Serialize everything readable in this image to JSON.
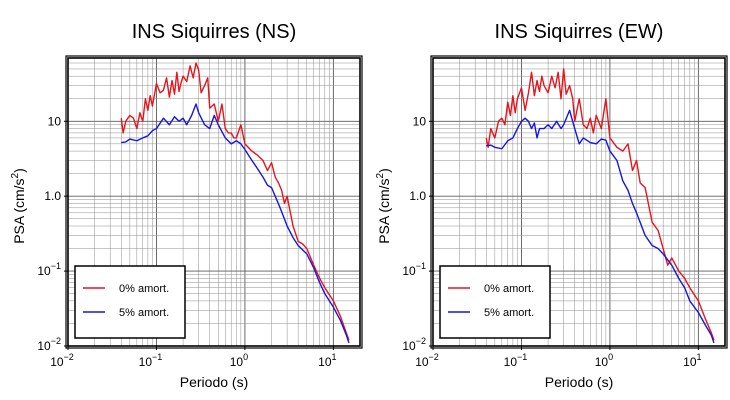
{
  "chart_data": [
    {
      "type": "line",
      "title": "INS Siquirres (NS)",
      "xlabel": "Periodo (s)",
      "ylabel": {
        "base": "PSA (cm/s",
        "sup": "2",
        "end": ")"
      },
      "xscale": "log",
      "yscale": "log",
      "xlim": [
        0.01,
        20
      ],
      "ylim": [
        0.01,
        70
      ],
      "xticks": [
        {
          "value": 0.01,
          "base": "10",
          "exp": "−2"
        },
        {
          "value": 0.1,
          "base": "10",
          "exp": "−1"
        },
        {
          "value": 1,
          "base": "10",
          "exp": "0"
        },
        {
          "value": 10,
          "base": "10",
          "exp": "1"
        }
      ],
      "yticks": [
        {
          "value": 0.01,
          "base": "10",
          "exp": "−2"
        },
        {
          "value": 0.1,
          "base": "10",
          "exp": "−1"
        },
        {
          "value": 1,
          "label": "1.0"
        },
        {
          "value": 10,
          "label": "10"
        }
      ],
      "grid": true,
      "legend": "bottom-left",
      "series": [
        {
          "name": "0% amort.",
          "color": "#e8141c",
          "x": [
            0.04,
            0.042,
            0.045,
            0.05,
            0.055,
            0.06,
            0.065,
            0.07,
            0.075,
            0.08,
            0.085,
            0.09,
            0.1,
            0.11,
            0.12,
            0.13,
            0.14,
            0.15,
            0.16,
            0.17,
            0.18,
            0.19,
            0.2,
            0.22,
            0.24,
            0.26,
            0.28,
            0.3,
            0.32,
            0.35,
            0.38,
            0.4,
            0.45,
            0.5,
            0.55,
            0.6,
            0.65,
            0.7,
            0.75,
            0.8,
            0.9,
            1.0,
            1.2,
            1.4,
            1.6,
            1.8,
            2.0,
            2.2,
            2.4,
            2.6,
            2.8,
            3.0,
            3.5,
            4.0,
            4.5,
            5.0,
            6.0,
            7.0,
            8.0,
            10.0,
            12.0,
            14.0,
            15.0
          ],
          "y": [
            11,
            7,
            10,
            12,
            11,
            8,
            13,
            10,
            20,
            14,
            22,
            16,
            32,
            24,
            26,
            38,
            21,
            35,
            23,
            45,
            25,
            33,
            40,
            34,
            55,
            38,
            60,
            48,
            24,
            30,
            38,
            15,
            17,
            10,
            17,
            8,
            7,
            7,
            6,
            6,
            9,
            5,
            4,
            3.5,
            3,
            2.2,
            2.8,
            1.8,
            1.5,
            1.2,
            0.8,
            1.0,
            0.4,
            0.25,
            0.23,
            0.2,
            0.12,
            0.08,
            0.06,
            0.04,
            0.025,
            0.015,
            0.012
          ]
        },
        {
          "name": "5% amort.",
          "color": "#1515e6",
          "x": [
            0.04,
            0.045,
            0.05,
            0.06,
            0.07,
            0.08,
            0.09,
            0.1,
            0.12,
            0.14,
            0.16,
            0.18,
            0.2,
            0.22,
            0.25,
            0.28,
            0.3,
            0.35,
            0.4,
            0.45,
            0.5,
            0.6,
            0.7,
            0.8,
            0.9,
            1.0,
            1.2,
            1.4,
            1.6,
            1.8,
            2.0,
            2.5,
            3.0,
            3.5,
            4.0,
            5.0,
            6.0,
            7.0,
            8.0,
            10.0,
            12.0,
            14.0,
            15.0
          ],
          "y": [
            5.2,
            5.3,
            5.8,
            5.5,
            6,
            6.4,
            7.5,
            8,
            11,
            9,
            11.5,
            10,
            11,
            9,
            12,
            17,
            13,
            9,
            8,
            12,
            9,
            6,
            5,
            5.5,
            5,
            4.2,
            3,
            2.3,
            1.8,
            1.4,
            1.3,
            0.7,
            0.4,
            0.28,
            0.22,
            0.17,
            0.11,
            0.07,
            0.05,
            0.033,
            0.022,
            0.014,
            0.011
          ]
        }
      ]
    },
    {
      "type": "line",
      "title": "INS Siquirres (EW)",
      "xlabel": "Periodo (s)",
      "ylabel": {
        "base": "PSA (cm/s",
        "sup": "2",
        "end": ")"
      },
      "xscale": "log",
      "yscale": "log",
      "xlim": [
        0.01,
        20
      ],
      "ylim": [
        0.01,
        70
      ],
      "xticks": [
        {
          "value": 0.01,
          "base": "10",
          "exp": "−2"
        },
        {
          "value": 0.1,
          "base": "10",
          "exp": "−1"
        },
        {
          "value": 1,
          "base": "10",
          "exp": "0"
        },
        {
          "value": 10,
          "base": "10",
          "exp": "1"
        }
      ],
      "yticks": [
        {
          "value": 0.01,
          "base": "10",
          "exp": "−2"
        },
        {
          "value": 0.1,
          "base": "10",
          "exp": "−1"
        },
        {
          "value": 1,
          "label": "1.0"
        },
        {
          "value": 10,
          "label": "10"
        }
      ],
      "grid": true,
      "legend": "bottom-left",
      "series": [
        {
          "name": "0% amort.",
          "color": "#e8141c",
          "x": [
            0.04,
            0.042,
            0.045,
            0.05,
            0.055,
            0.06,
            0.065,
            0.07,
            0.075,
            0.08,
            0.085,
            0.09,
            0.1,
            0.11,
            0.12,
            0.13,
            0.14,
            0.15,
            0.16,
            0.17,
            0.18,
            0.2,
            0.22,
            0.24,
            0.26,
            0.28,
            0.3,
            0.32,
            0.35,
            0.38,
            0.4,
            0.45,
            0.5,
            0.55,
            0.6,
            0.65,
            0.7,
            0.8,
            0.9,
            1.0,
            1.2,
            1.4,
            1.6,
            1.8,
            2.0,
            2.2,
            2.5,
            3.0,
            3.5,
            4.0,
            4.5,
            5.0,
            6.0,
            7.0,
            8.0,
            10.0,
            12.0,
            14.0,
            15.0
          ],
          "y": [
            6,
            4.5,
            8,
            6,
            10,
            11,
            9,
            18,
            12,
            22,
            13,
            20,
            28,
            14,
            24,
            45,
            22,
            35,
            25,
            40,
            30,
            24,
            40,
            28,
            45,
            20,
            50,
            23,
            30,
            20,
            10,
            20,
            9,
            8,
            11,
            7,
            12,
            8,
            20,
            6,
            4.5,
            4,
            5,
            2.2,
            3,
            1.5,
            1.3,
            0.45,
            0.35,
            0.2,
            0.12,
            0.15,
            0.1,
            0.08,
            0.06,
            0.04,
            0.023,
            0.015,
            0.012
          ]
        },
        {
          "name": "5% amort.",
          "color": "#1515e6",
          "x": [
            0.04,
            0.045,
            0.05,
            0.06,
            0.07,
            0.08,
            0.09,
            0.1,
            0.11,
            0.12,
            0.13,
            0.14,
            0.15,
            0.16,
            0.18,
            0.2,
            0.22,
            0.25,
            0.28,
            0.3,
            0.35,
            0.4,
            0.45,
            0.5,
            0.6,
            0.7,
            0.8,
            0.9,
            1.0,
            1.2,
            1.4,
            1.6,
            1.8,
            2.0,
            2.5,
            3.0,
            3.5,
            4.0,
            5.0,
            6.0,
            7.0,
            8.0,
            10.0,
            12.0,
            14.0,
            15.0
          ],
          "y": [
            4.7,
            4.8,
            4.5,
            4.3,
            5.5,
            6,
            8,
            10,
            11,
            10,
            8,
            9.5,
            6,
            8,
            8,
            9,
            8,
            10,
            8,
            9,
            14,
            8,
            5,
            6,
            5.2,
            5,
            5.8,
            5.6,
            4,
            3,
            1.6,
            1.2,
            0.8,
            0.6,
            0.3,
            0.22,
            0.2,
            0.17,
            0.12,
            0.08,
            0.06,
            0.04,
            0.028,
            0.019,
            0.014,
            0.011
          ]
        }
      ]
    }
  ]
}
